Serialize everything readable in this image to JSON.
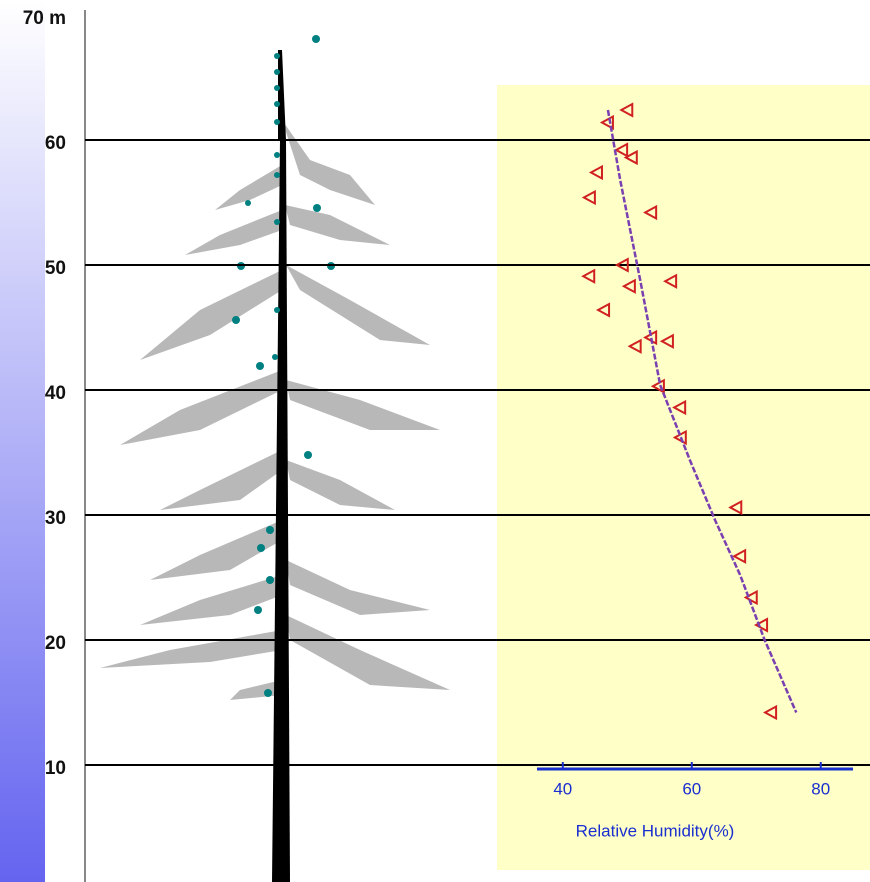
{
  "chart_data": {
    "type": "scatter",
    "ylim": [
      0,
      70
    ],
    "yticks": [
      10,
      20,
      30,
      40,
      50,
      60,
      {
        "value": 70,
        "label": "70 m"
      }
    ],
    "xlim": [
      36,
      85
    ],
    "xticks": [
      40,
      60,
      80
    ],
    "x_label": "Relative Humidity(%)",
    "grid": true,
    "series": [
      {
        "type": "scatter",
        "color": "#d02020",
        "x": [
          50,
          47,
          49.2,
          50.7,
          45.3,
          44.2,
          53.7,
          49.3,
          44.1,
          50.4,
          56.8,
          46.4,
          53.7,
          51.3,
          56.3,
          54.9,
          58.2,
          58.3,
          66.9,
          67.5,
          69.3,
          70.9,
          72.3
        ],
        "values": [
          62.4,
          61.4,
          59.2,
          58.6,
          57.4,
          55.4,
          54.2,
          50,
          49.1,
          48.3,
          48.7,
          46.4,
          44.2,
          43.5,
          43.9,
          40.3,
          38.6,
          36.2,
          30.6,
          26.7,
          23.4,
          21.2,
          14.2
        ]
      },
      {
        "type": "line",
        "color": "#7a3fb0",
        "x": [
          47,
          48.9,
          52,
          55.1,
          59.7,
          63.6,
          67.5,
          71.3,
          76.2
        ],
        "values": [
          62.4,
          56.8,
          48.8,
          40.4,
          34.4,
          29.6,
          25.2,
          20,
          14.2
        ]
      }
    ]
  }
}
